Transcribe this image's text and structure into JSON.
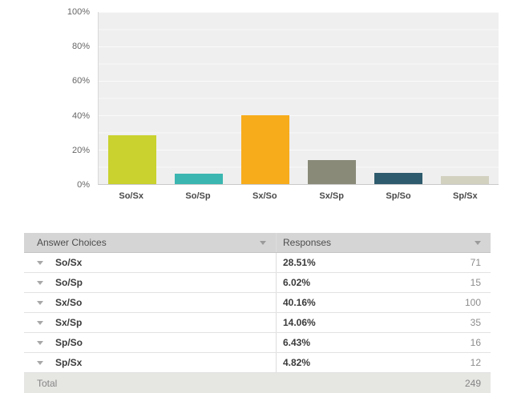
{
  "chart": {
    "y_tick_display": [
      "100%",
      "80%",
      "60%",
      "40%",
      "20%",
      "0%"
    ]
  },
  "chart_data": {
    "type": "bar",
    "categories": [
      "So/Sx",
      "So/Sp",
      "Sx/So",
      "Sx/Sp",
      "Sp/So",
      "Sp/Sx"
    ],
    "values": [
      28.51,
      6.02,
      40.16,
      14.06,
      6.43,
      4.82
    ],
    "colors": [
      "#c9d22e",
      "#3bb6b0",
      "#f7ac1b",
      "#8a8a79",
      "#2e5b6d",
      "#d2d0bf"
    ],
    "title": "",
    "xlabel": "",
    "ylabel": "",
    "ylim": [
      0,
      100
    ],
    "y_tick_labels": [
      "0%",
      "20%",
      "40%",
      "60%",
      "80%",
      "100%"
    ],
    "gridline_interval_percent": 10,
    "grid": true,
    "legend": false,
    "plot_background": "#efefef"
  },
  "table": {
    "headers": [
      {
        "label": "Answer Choices"
      },
      {
        "label": "Responses"
      }
    ],
    "rows": [
      {
        "choice": "So/Sx",
        "percent": "28.51%",
        "count": "71"
      },
      {
        "choice": "So/Sp",
        "percent": "6.02%",
        "count": "15"
      },
      {
        "choice": "Sx/So",
        "percent": "40.16%",
        "count": "100"
      },
      {
        "choice": "Sx/Sp",
        "percent": "14.06%",
        "count": "35"
      },
      {
        "choice": "Sp/So",
        "percent": "6.43%",
        "count": "16"
      },
      {
        "choice": "Sp/Sx",
        "percent": "4.82%",
        "count": "12"
      }
    ],
    "total": {
      "label": "Total",
      "count": "249"
    }
  }
}
